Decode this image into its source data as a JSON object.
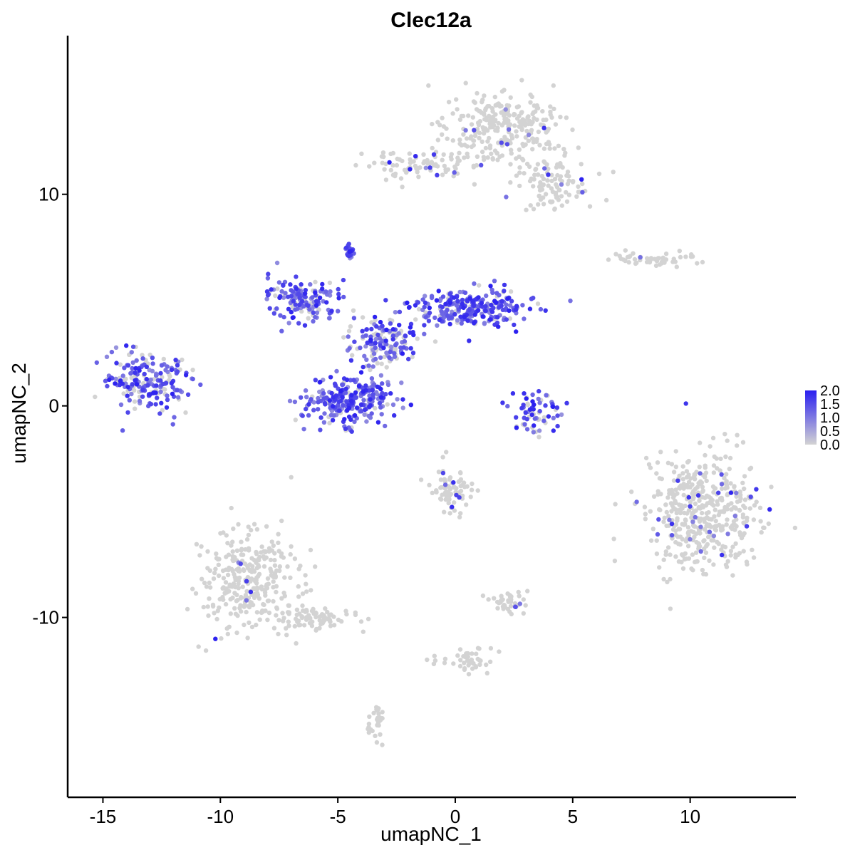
{
  "chart_data": {
    "type": "scatter",
    "title": "Clec12a",
    "xlabel": "umapNC_1",
    "ylabel": "umapNC_2",
    "xlim": [
      -16.5,
      14.5
    ],
    "ylim": [
      -18.5,
      17.5
    ],
    "xticks": [
      -15,
      -10,
      -5,
      0,
      5,
      10
    ],
    "yticks": [
      -10,
      0,
      10
    ],
    "xtick_labels": [
      "-15",
      "-10",
      "-5",
      "0",
      "5",
      "10"
    ],
    "ytick_labels": [
      "-10",
      "0",
      "10"
    ],
    "grid": false,
    "legend": {
      "position": "right",
      "type": "continuous",
      "range": [
        0,
        2.0
      ],
      "ticks": [
        2.0,
        1.5,
        1.0,
        0.5,
        0.0
      ],
      "tick_labels": [
        "2.0",
        "1.5",
        "1.0",
        "0.5",
        "0.0"
      ],
      "low_color": "#d3d3d3",
      "high_color": "#2a1ff0"
    },
    "clusters": [
      {
        "name": "top-right large",
        "cx": 1.8,
        "cy": 13.3,
        "rx": 2.3,
        "ry": 1.8,
        "n": 260,
        "expr": 0.03
      },
      {
        "name": "top arm",
        "cx": -1.5,
        "cy": 11.4,
        "rx": 2.6,
        "ry": 0.7,
        "n": 90,
        "expr": 0.05
      },
      {
        "name": "top right lobe",
        "cx": 4.2,
        "cy": 10.5,
        "rx": 1.6,
        "ry": 1.4,
        "n": 110,
        "expr": 0.04
      },
      {
        "name": "small stripe",
        "cx": 8.5,
        "cy": 6.9,
        "rx": 1.9,
        "ry": 0.35,
        "n": 50,
        "expr": 0.02
      },
      {
        "name": "left blob",
        "cx": -13.2,
        "cy": 1.2,
        "rx": 1.7,
        "ry": 1.4,
        "n": 200,
        "expr": 0.75
      },
      {
        "name": "center upper-left",
        "cx": -6.5,
        "cy": 5.0,
        "rx": 1.4,
        "ry": 1.0,
        "n": 150,
        "expr": 0.85
      },
      {
        "name": "center lower blob",
        "cx": -4.6,
        "cy": 0.2,
        "rx": 1.9,
        "ry": 1.1,
        "n": 260,
        "expr": 0.92
      },
      {
        "name": "center diagonal",
        "cx": -3.2,
        "cy": 3.0,
        "rx": 1.5,
        "ry": 1.2,
        "n": 150,
        "expr": 0.6
      },
      {
        "name": "center right wing",
        "cx": 0.5,
        "cy": 4.6,
        "rx": 2.3,
        "ry": 0.9,
        "n": 260,
        "expr": 0.85
      },
      {
        "name": "spike top",
        "cx": -4.5,
        "cy": 7.3,
        "rx": 0.2,
        "ry": 0.25,
        "n": 20,
        "expr": 1.0
      },
      {
        "name": "small center-right",
        "cx": 3.5,
        "cy": -0.2,
        "rx": 1.0,
        "ry": 0.9,
        "n": 70,
        "expr": 0.78
      },
      {
        "name": "right large",
        "cx": 10.5,
        "cy": -5.0,
        "rx": 2.4,
        "ry": 2.7,
        "n": 460,
        "expr": 0.07
      },
      {
        "name": "mid small",
        "cx": -0.2,
        "cy": -4.0,
        "rx": 0.9,
        "ry": 1.1,
        "n": 80,
        "expr": 0.1
      },
      {
        "name": "bottom left large",
        "cx": -8.8,
        "cy": -8.3,
        "rx": 1.9,
        "ry": 2.3,
        "n": 300,
        "expr": 0.01
      },
      {
        "name": "bottom left arm",
        "cx": -6.0,
        "cy": -10.0,
        "rx": 1.8,
        "ry": 0.6,
        "n": 80,
        "expr": 0.01
      },
      {
        "name": "bottom small right",
        "cx": 2.2,
        "cy": -9.3,
        "rx": 0.9,
        "ry": 0.45,
        "n": 40,
        "expr": 0.05
      },
      {
        "name": "bottom tail",
        "cx": 0.5,
        "cy": -12.0,
        "rx": 1.6,
        "ry": 0.6,
        "n": 45,
        "expr": 0.0
      },
      {
        "name": "lower stalk",
        "cx": -3.4,
        "cy": -15.0,
        "rx": 0.35,
        "ry": 0.8,
        "n": 30,
        "expr": 0.01
      }
    ]
  }
}
